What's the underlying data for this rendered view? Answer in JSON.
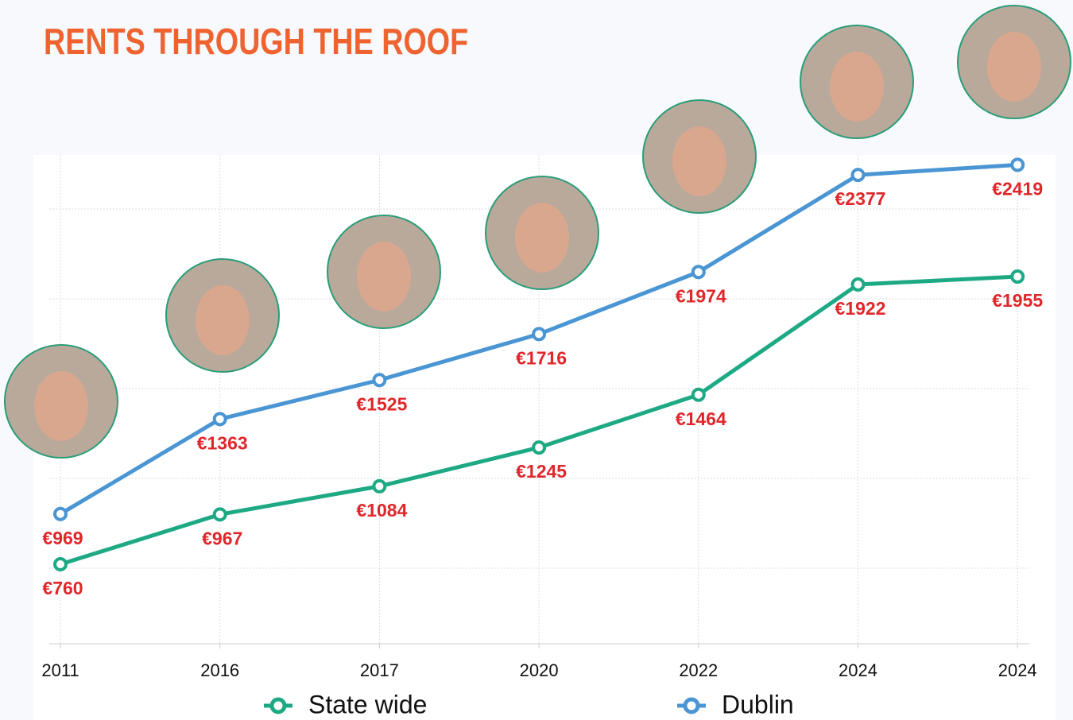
{
  "chart_data": {
    "type": "line",
    "title": "RENTS THROUGH THE ROOF",
    "categories": [
      "2011",
      "2016",
      "2017",
      "2020",
      "2022",
      "2024",
      "2024"
    ],
    "series": [
      {
        "name": "State wide",
        "color": "#1ea985",
        "values": [
          760,
          967,
          1084,
          1245,
          1464,
          1922,
          1955
        ],
        "value_labels": [
          "€760",
          "€967",
          "€1084",
          "€1245",
          "€1464",
          "€1922",
          "€1955"
        ]
      },
      {
        "name": "Dublin",
        "color": "#4a95d3",
        "values": [
          969,
          1363,
          1525,
          1716,
          1974,
          2377,
          2419
        ],
        "value_labels": [
          "€969",
          "€1363",
          "€1525",
          "€1716",
          "€1974",
          "€2377",
          "€2419"
        ]
      }
    ],
    "ylim": [
      430,
      2460
    ],
    "grid": true,
    "label_color": "#e0262a",
    "title_color": "#ef6330"
  }
}
